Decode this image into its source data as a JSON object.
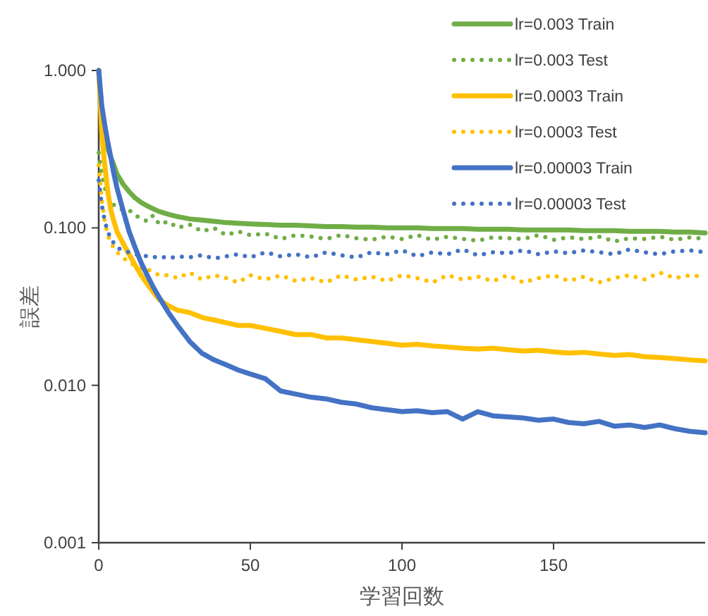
{
  "chart_data": {
    "type": "line",
    "xlabel": "学習回数",
    "ylabel": "誤差",
    "log": "y",
    "legend": "top right",
    "grid": false,
    "marker": "none",
    "x": [
      0,
      1,
      2,
      3,
      4,
      5,
      6,
      8,
      10,
      12,
      14,
      16,
      18,
      20,
      23,
      26,
      30,
      34,
      38,
      42,
      46,
      50,
      55,
      60,
      65,
      70,
      75,
      80,
      85,
      90,
      95,
      100,
      105,
      110,
      115,
      120,
      125,
      130,
      135,
      140,
      145,
      150,
      155,
      160,
      165,
      170,
      175,
      180,
      185,
      190,
      195,
      200
    ],
    "xlim": [
      0,
      200
    ],
    "xticks": [
      0,
      50,
      100,
      150
    ],
    "ylim": [
      0.001,
      1
    ],
    "yticks": [
      {
        "value": 0.001,
        "label": "0.001"
      },
      {
        "value": 0.01,
        "label": "0.010"
      },
      {
        "value": 0.1,
        "label": "0.100"
      },
      {
        "value": 1,
        "label": "1.000"
      }
    ],
    "series": [
      {
        "name": "lr=0.003 Train",
        "color": "#70ad47",
        "line_style": "solid",
        "values": [
          1.0,
          0.55,
          0.4,
          0.32,
          0.28,
          0.25,
          0.22,
          0.19,
          0.17,
          0.155,
          0.145,
          0.138,
          0.132,
          0.127,
          0.122,
          0.118,
          0.114,
          0.112,
          0.11,
          0.108,
          0.107,
          0.106,
          0.105,
          0.104,
          0.104,
          0.103,
          0.102,
          0.102,
          0.101,
          0.101,
          0.1,
          0.1,
          0.1,
          0.099,
          0.099,
          0.099,
          0.098,
          0.098,
          0.098,
          0.097,
          0.097,
          0.097,
          0.097,
          0.096,
          0.096,
          0.096,
          0.095,
          0.095,
          0.095,
          0.094,
          0.094,
          0.093
        ]
      },
      {
        "name": "lr=0.003 Test",
        "color": "#70ad47",
        "line_style": "dotted",
        "values": [
          0.3,
          0.22,
          0.18,
          0.16,
          0.15,
          0.14,
          0.135,
          0.13,
          0.13,
          0.12,
          0.115,
          0.11,
          0.12,
          0.105,
          0.11,
          0.1,
          0.105,
          0.095,
          0.1,
          0.09,
          0.095,
          0.09,
          0.092,
          0.085,
          0.09,
          0.088,
          0.085,
          0.09,
          0.086,
          0.084,
          0.088,
          0.085,
          0.09,
          0.084,
          0.088,
          0.085,
          0.083,
          0.087,
          0.086,
          0.085,
          0.09,
          0.084,
          0.087,
          0.085,
          0.088,
          0.082,
          0.086,
          0.085,
          0.088,
          0.084,
          0.087,
          0.085
        ]
      },
      {
        "name": "lr=0.0003 Train",
        "color": "#ffc000",
        "line_style": "solid",
        "values": [
          1.0,
          0.4,
          0.25,
          0.17,
          0.13,
          0.11,
          0.095,
          0.08,
          0.068,
          0.058,
          0.05,
          0.044,
          0.039,
          0.035,
          0.032,
          0.03,
          0.029,
          0.027,
          0.026,
          0.025,
          0.024,
          0.024,
          0.023,
          0.022,
          0.021,
          0.021,
          0.02,
          0.02,
          0.0195,
          0.019,
          0.0185,
          0.018,
          0.0182,
          0.0178,
          0.0175,
          0.0172,
          0.017,
          0.0172,
          0.0168,
          0.0165,
          0.0167,
          0.0163,
          0.016,
          0.0162,
          0.0158,
          0.0155,
          0.0157,
          0.0152,
          0.015,
          0.0148,
          0.0145,
          0.0143
        ]
      },
      {
        "name": "lr=0.0003 Test",
        "color": "#ffc000",
        "line_style": "dotted",
        "values": [
          0.25,
          0.15,
          0.11,
          0.09,
          0.08,
          0.075,
          0.07,
          0.065,
          0.06,
          0.058,
          0.055,
          0.055,
          0.052,
          0.05,
          0.05,
          0.048,
          0.052,
          0.047,
          0.05,
          0.048,
          0.045,
          0.05,
          0.047,
          0.05,
          0.046,
          0.048,
          0.045,
          0.05,
          0.047,
          0.049,
          0.046,
          0.05,
          0.048,
          0.045,
          0.05,
          0.047,
          0.049,
          0.046,
          0.05,
          0.045,
          0.048,
          0.05,
          0.046,
          0.049,
          0.045,
          0.048,
          0.05,
          0.047,
          0.052,
          0.048,
          0.05,
          0.049
        ]
      },
      {
        "name": "lr=0.00003 Train",
        "color": "#4472c4",
        "line_style": "solid",
        "values": [
          1.0,
          0.6,
          0.45,
          0.35,
          0.28,
          0.22,
          0.18,
          0.13,
          0.095,
          0.075,
          0.06,
          0.05,
          0.042,
          0.036,
          0.029,
          0.024,
          0.019,
          0.016,
          0.0145,
          0.0135,
          0.0125,
          0.0118,
          0.011,
          0.0092,
          0.0088,
          0.0084,
          0.0082,
          0.0078,
          0.0076,
          0.0072,
          0.007,
          0.0068,
          0.0069,
          0.0067,
          0.0068,
          0.0061,
          0.0068,
          0.0064,
          0.0063,
          0.0062,
          0.006,
          0.0061,
          0.0058,
          0.0057,
          0.0059,
          0.0055,
          0.0056,
          0.0054,
          0.0056,
          0.0053,
          0.0051,
          0.005
        ]
      },
      {
        "name": "lr=0.00003 Test",
        "color": "#4472c4",
        "line_style": "dotted",
        "values": [
          0.2,
          0.14,
          0.11,
          0.095,
          0.085,
          0.08,
          0.075,
          0.072,
          0.07,
          0.068,
          0.067,
          0.066,
          0.065,
          0.066,
          0.064,
          0.066,
          0.065,
          0.067,
          0.064,
          0.066,
          0.068,
          0.065,
          0.07,
          0.066,
          0.068,
          0.065,
          0.07,
          0.067,
          0.065,
          0.07,
          0.068,
          0.072,
          0.066,
          0.07,
          0.068,
          0.073,
          0.067,
          0.07,
          0.069,
          0.072,
          0.068,
          0.071,
          0.069,
          0.072,
          0.07,
          0.068,
          0.073,
          0.07,
          0.068,
          0.071,
          0.072,
          0.07
        ]
      }
    ]
  }
}
